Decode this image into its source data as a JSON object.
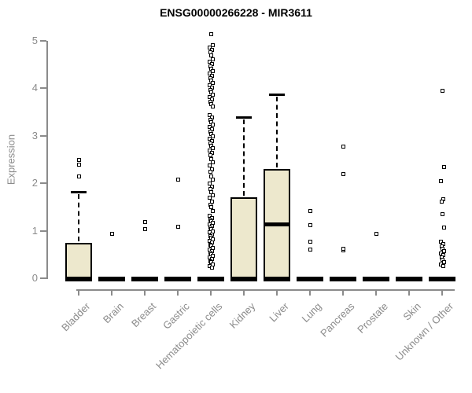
{
  "title": "ENSG00000266228 - MIR3611",
  "colors": {
    "box_fill": "#EDE8CD",
    "box_border": "#000000",
    "median": "#000000",
    "whisker": "#000000",
    "outlier_border": "#000000",
    "outlier_fill": "#ffffff",
    "axis": "#8b8b8b",
    "tick_label": "#8b8b8b",
    "title_color": "#000000",
    "background": "#ffffff"
  },
  "chart_data": {
    "type": "boxplot",
    "title": "ENSG00000266228 - MIR3611",
    "xlabel": "",
    "ylabel": "Expression",
    "ylim": [
      0,
      5
    ],
    "y_ticks": [
      0,
      1,
      2,
      3,
      4,
      5
    ],
    "grid": false,
    "legend": false,
    "categories": [
      "Bladder",
      "Brain",
      "Breast",
      "Gastric",
      "Hematopoietic cells",
      "Kidney",
      "Liver",
      "Lung",
      "Pancreas",
      "Prostate",
      "Skin",
      "Unknown / Other"
    ],
    "series": [
      {
        "name": "Bladder",
        "q1": 0,
        "median": 0,
        "q3": 0.75,
        "whisker_low": 0,
        "whisker_high": 1.82,
        "outliers": [
          2.15,
          2.4,
          2.5
        ]
      },
      {
        "name": "Brain",
        "q1": 0,
        "median": 0,
        "q3": 0,
        "whisker_low": 0,
        "whisker_high": 0,
        "outliers": [
          0.95
        ]
      },
      {
        "name": "Breast",
        "q1": 0,
        "median": 0,
        "q3": 0,
        "whisker_low": 0,
        "whisker_high": 0,
        "outliers": [
          1.04,
          1.19
        ]
      },
      {
        "name": "Gastric",
        "q1": 0,
        "median": 0,
        "q3": 0,
        "whisker_low": 0,
        "whisker_high": 0,
        "outliers": [
          1.1,
          2.08
        ]
      },
      {
        "name": "Hematopoietic cells",
        "q1": 0,
        "median": 0,
        "q3": 0,
        "whisker_low": 0,
        "whisker_high": 0,
        "outliers": [
          5.15,
          4.92,
          4.87,
          4.82,
          4.77,
          4.7,
          4.62,
          4.57,
          4.52,
          4.47,
          4.42,
          4.37,
          4.32,
          4.27,
          4.22,
          4.17,
          4.12,
          4.07,
          4.02,
          3.97,
          3.92,
          3.87,
          3.82,
          3.77,
          3.72,
          3.67,
          3.62,
          3.45,
          3.4,
          3.35,
          3.3,
          3.25,
          3.2,
          3.15,
          3.1,
          3.05,
          3.0,
          2.95,
          2.9,
          2.85,
          2.8,
          2.75,
          2.7,
          2.65,
          2.6,
          2.52,
          2.45,
          2.38,
          2.3,
          2.25,
          2.15,
          2.08,
          2.0,
          1.94,
          1.88,
          1.82,
          1.76,
          1.7,
          1.63,
          1.56,
          1.5,
          1.42,
          1.32,
          1.28,
          1.25,
          1.21,
          1.18,
          1.14,
          1.11,
          1.07,
          1.04,
          1.0,
          0.97,
          0.93,
          0.9,
          0.86,
          0.83,
          0.79,
          0.76,
          0.72,
          0.69,
          0.65,
          0.62,
          0.58,
          0.55,
          0.51,
          0.48,
          0.44,
          0.41,
          0.37,
          0.34,
          0.3,
          0.27,
          0.23
        ]
      },
      {
        "name": "Kidney",
        "q1": 0,
        "median": 0,
        "q3": 1.7,
        "whisker_low": 0,
        "whisker_high": 3.4,
        "outliers": []
      },
      {
        "name": "Liver",
        "q1": 0,
        "median": 1.15,
        "q3": 2.3,
        "whisker_low": 0,
        "whisker_high": 3.87,
        "outliers": []
      },
      {
        "name": "Lung",
        "q1": 0,
        "median": 0,
        "q3": 0,
        "whisker_low": 0,
        "whisker_high": 0,
        "outliers": [
          0.61,
          0.78,
          1.13,
          1.42
        ]
      },
      {
        "name": "Pancreas",
        "q1": 0,
        "median": 0,
        "q3": 0,
        "whisker_low": 0,
        "whisker_high": 0,
        "outliers": [
          0.6,
          0.63,
          2.2,
          2.78
        ]
      },
      {
        "name": "Prostate",
        "q1": 0,
        "median": 0,
        "q3": 0,
        "whisker_low": 0,
        "whisker_high": 0,
        "outliers": [
          0.95
        ]
      },
      {
        "name": "Skin",
        "q1": 0,
        "median": 0,
        "q3": 0,
        "whisker_low": 0,
        "whisker_high": 0,
        "outliers": []
      },
      {
        "name": "Unknown / Other",
        "q1": 0,
        "median": 0,
        "q3": 0,
        "whisker_low": 0,
        "whisker_high": 0,
        "outliers": [
          3.95,
          2.35,
          2.05,
          1.67,
          1.62,
          1.36,
          1.08,
          0.78,
          0.73,
          0.68,
          0.63,
          0.58,
          0.53,
          0.49,
          0.45,
          0.4,
          0.35,
          0.3,
          0.26
        ]
      }
    ]
  }
}
